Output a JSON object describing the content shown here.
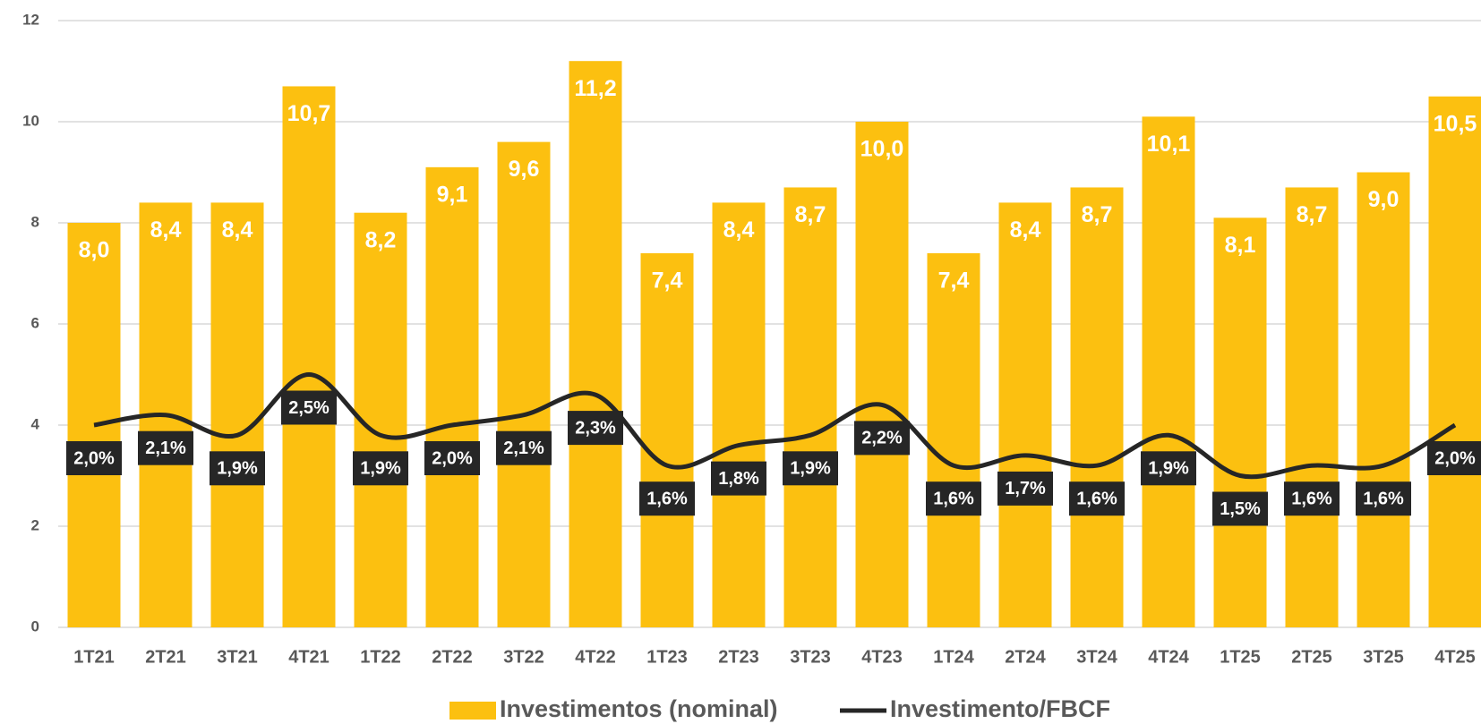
{
  "chart_data": {
    "type": "bar_line",
    "categories": [
      "1T21",
      "2T21",
      "3T21",
      "4T21",
      "1T22",
      "2T22",
      "3T22",
      "4T22",
      "1T23",
      "2T23",
      "3T23",
      "4T23",
      "1T24",
      "2T24",
      "3T24",
      "4T24",
      "1T25",
      "2T25",
      "3T25",
      "4T25"
    ],
    "series": [
      {
        "name": "Investimentos (nominal)",
        "type": "bar",
        "color": "#fcc010",
        "values": [
          8.0,
          8.4,
          8.4,
          10.7,
          8.2,
          9.1,
          9.6,
          11.2,
          7.4,
          8.4,
          8.7,
          10.0,
          7.4,
          8.4,
          8.7,
          10.1,
          8.1,
          8.7,
          9.0,
          10.5
        ],
        "value_labels": [
          "8,0",
          "8,4",
          "8,4",
          "10,7",
          "8,2",
          "9,1",
          "9,6",
          "11,2",
          "7,4",
          "8,4",
          "8,7",
          "10,0",
          "7,4",
          "8,4",
          "8,7",
          "10,1",
          "8,1",
          "8,7",
          "9,0",
          "10,5"
        ]
      },
      {
        "name": "Investimento/FBCF",
        "type": "line",
        "color": "#262626",
        "axis": "y2",
        "values": [
          2.0,
          2.1,
          1.9,
          2.5,
          1.9,
          2.0,
          2.1,
          2.3,
          1.6,
          1.8,
          1.9,
          2.2,
          1.6,
          1.7,
          1.6,
          1.9,
          1.5,
          1.6,
          1.6,
          2.0
        ],
        "value_labels": [
          "2,0%",
          "2,1%",
          "1,9%",
          "2,5%",
          "1,9%",
          "2,0%",
          "2,1%",
          "2,3%",
          "1,6%",
          "1,8%",
          "1,9%",
          "2,2%",
          "1,6%",
          "1,7%",
          "1,6%",
          "1,9%",
          "1,5%",
          "1,6%",
          "1,6%",
          "2,0%"
        ]
      }
    ],
    "ylim": [
      0,
      12
    ],
    "yticks": [
      0,
      2,
      4,
      6,
      8,
      10,
      12
    ],
    "y2lim": [
      0,
      6
    ],
    "grid": true,
    "legend": "bottom"
  }
}
